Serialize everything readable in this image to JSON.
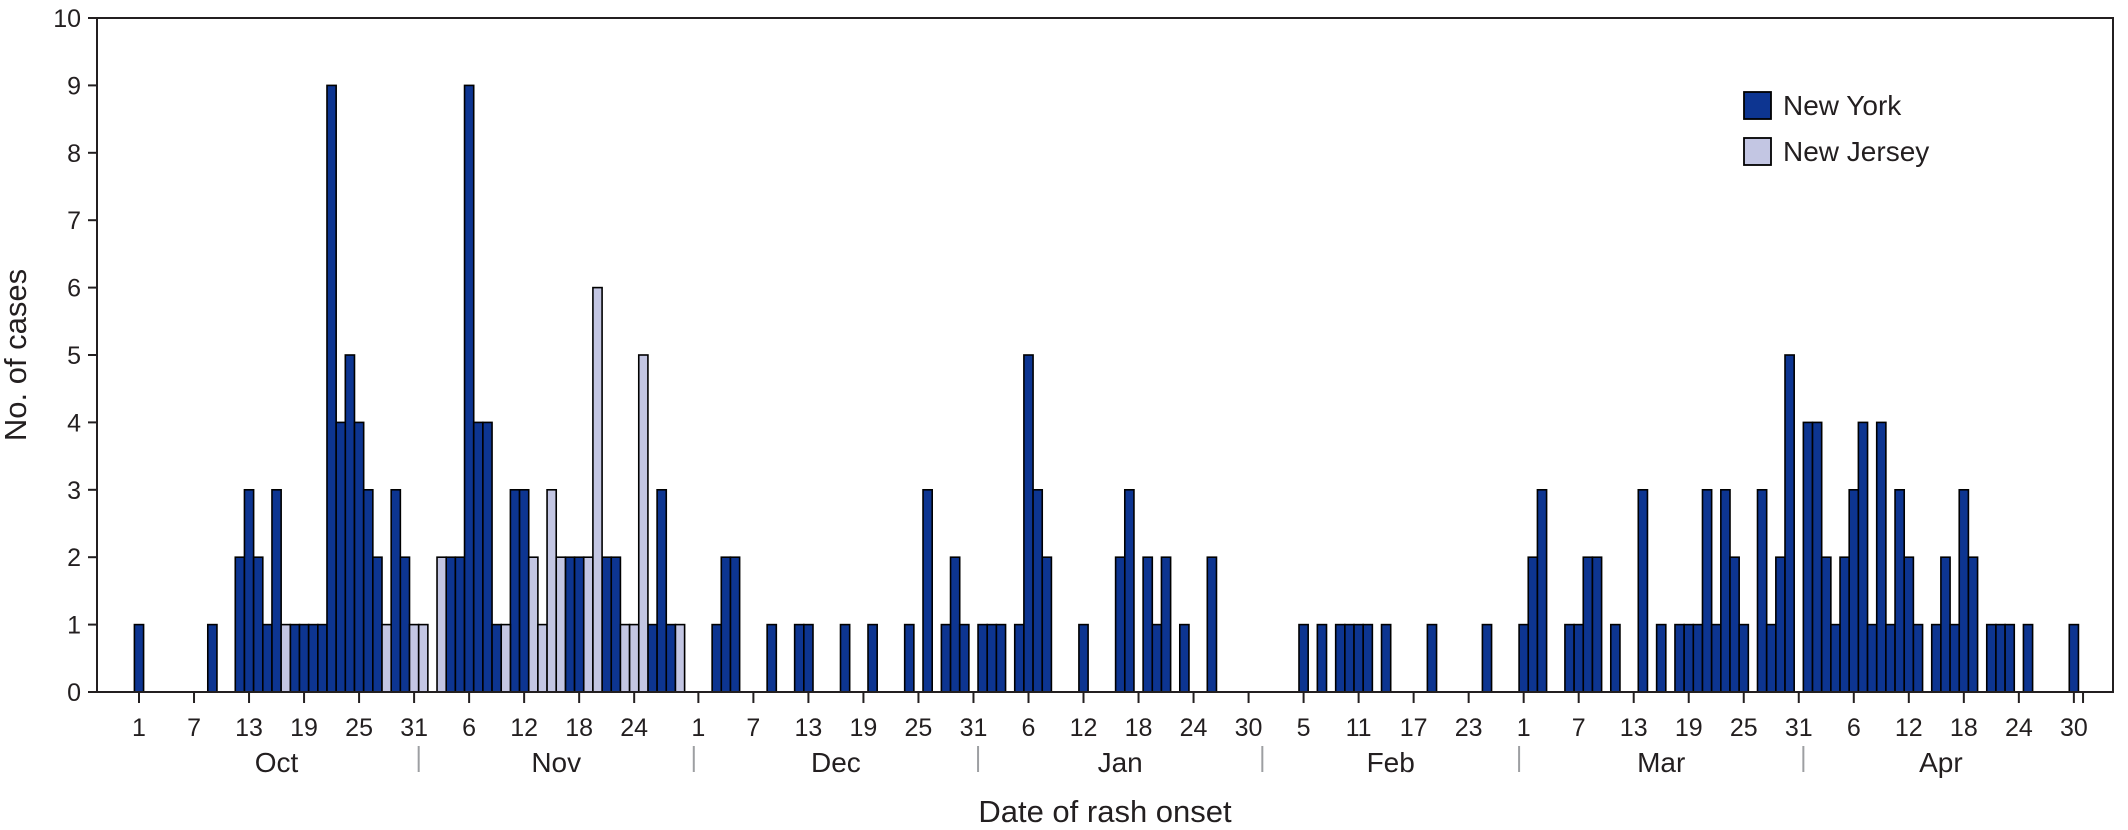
{
  "chart_data": {
    "type": "bar",
    "title": "",
    "xlabel": "Date of rash onset",
    "ylabel": "No. of cases",
    "ylim": [
      0,
      10
    ],
    "yticks": [
      0,
      1,
      2,
      3,
      4,
      5,
      6,
      7,
      8,
      9,
      10
    ],
    "grid": false,
    "legend_position": "top-right",
    "x_range": [
      "Oct 1",
      "Apr 30"
    ],
    "months": [
      "Oct",
      "Nov",
      "Dec",
      "Jan",
      "Feb",
      "Mar",
      "Apr"
    ],
    "x_tick_labels": [
      {
        "date": "Oct 1",
        "label": "1"
      },
      {
        "date": "Oct 7",
        "label": "7"
      },
      {
        "date": "Oct 13",
        "label": "13"
      },
      {
        "date": "Oct 19",
        "label": "19"
      },
      {
        "date": "Oct 25",
        "label": "25"
      },
      {
        "date": "Oct 31",
        "label": "31"
      },
      {
        "date": "Nov 6",
        "label": "6"
      },
      {
        "date": "Nov 12",
        "label": "12"
      },
      {
        "date": "Nov 18",
        "label": "18"
      },
      {
        "date": "Nov 24",
        "label": "24"
      },
      {
        "date": "Dec 1",
        "label": "1"
      },
      {
        "date": "Dec 7",
        "label": "7"
      },
      {
        "date": "Dec 13",
        "label": "13"
      },
      {
        "date": "Dec 19",
        "label": "19"
      },
      {
        "date": "Dec 25",
        "label": "25"
      },
      {
        "date": "Dec 31",
        "label": "31"
      },
      {
        "date": "Jan 6",
        "label": "6"
      },
      {
        "date": "Jan 12",
        "label": "12"
      },
      {
        "date": "Jan 18",
        "label": "18"
      },
      {
        "date": "Jan 24",
        "label": "24"
      },
      {
        "date": "Jan 30",
        "label": "30"
      },
      {
        "date": "Feb 5",
        "label": "5"
      },
      {
        "date": "Feb 11",
        "label": "11"
      },
      {
        "date": "Feb 17",
        "label": "17"
      },
      {
        "date": "Feb 23",
        "label": "23"
      },
      {
        "date": "Mar 1",
        "label": "1"
      },
      {
        "date": "Mar 7",
        "label": "7"
      },
      {
        "date": "Mar 13",
        "label": "13"
      },
      {
        "date": "Mar 19",
        "label": "19"
      },
      {
        "date": "Mar 25",
        "label": "25"
      },
      {
        "date": "Mar 31",
        "label": "31"
      },
      {
        "date": "Apr 6",
        "label": "6"
      },
      {
        "date": "Apr 12",
        "label": "12"
      },
      {
        "date": "Apr 18",
        "label": "18"
      },
      {
        "date": "Apr 24",
        "label": "24"
      },
      {
        "date": "Apr 30",
        "label": "30"
      }
    ],
    "series": [
      {
        "name": "New York",
        "color": "#0d3591",
        "points": [
          {
            "date": "Oct 1",
            "value": 1
          },
          {
            "date": "Oct 9",
            "value": 1
          },
          {
            "date": "Oct 12",
            "value": 2
          },
          {
            "date": "Oct 13",
            "value": 3
          },
          {
            "date": "Oct 14",
            "value": 2
          },
          {
            "date": "Oct 15",
            "value": 1
          },
          {
            "date": "Oct 16",
            "value": 3
          },
          {
            "date": "Oct 18",
            "value": 1
          },
          {
            "date": "Oct 19",
            "value": 1
          },
          {
            "date": "Oct 20",
            "value": 1
          },
          {
            "date": "Oct 21",
            "value": 1
          },
          {
            "date": "Oct 22",
            "value": 9
          },
          {
            "date": "Oct 23",
            "value": 4
          },
          {
            "date": "Oct 24",
            "value": 5
          },
          {
            "date": "Oct 25",
            "value": 4
          },
          {
            "date": "Oct 26",
            "value": 3
          },
          {
            "date": "Oct 27",
            "value": 2
          },
          {
            "date": "Oct 29",
            "value": 3
          },
          {
            "date": "Oct 30",
            "value": 2
          },
          {
            "date": "Nov 4",
            "value": 2
          },
          {
            "date": "Nov 5",
            "value": 2
          },
          {
            "date": "Nov 6",
            "value": 9
          },
          {
            "date": "Nov 7",
            "value": 4
          },
          {
            "date": "Nov 8",
            "value": 4
          },
          {
            "date": "Nov 9",
            "value": 1
          },
          {
            "date": "Nov 11",
            "value": 3
          },
          {
            "date": "Nov 12",
            "value": 3
          },
          {
            "date": "Nov 17",
            "value": 2
          },
          {
            "date": "Nov 18",
            "value": 2
          },
          {
            "date": "Nov 21",
            "value": 2
          },
          {
            "date": "Nov 22",
            "value": 2
          },
          {
            "date": "Nov 26",
            "value": 1
          },
          {
            "date": "Nov 27",
            "value": 3
          },
          {
            "date": "Nov 28",
            "value": 1
          },
          {
            "date": "Dec 3",
            "value": 1
          },
          {
            "date": "Dec 4",
            "value": 2
          },
          {
            "date": "Dec 5",
            "value": 2
          },
          {
            "date": "Dec 9",
            "value": 1
          },
          {
            "date": "Dec 12",
            "value": 1
          },
          {
            "date": "Dec 13",
            "value": 1
          },
          {
            "date": "Dec 17",
            "value": 1
          },
          {
            "date": "Dec 20",
            "value": 1
          },
          {
            "date": "Dec 24",
            "value": 1
          },
          {
            "date": "Dec 26",
            "value": 3
          },
          {
            "date": "Dec 28",
            "value": 1
          },
          {
            "date": "Dec 29",
            "value": 2
          },
          {
            "date": "Dec 30",
            "value": 1
          },
          {
            "date": "Jan 1",
            "value": 1
          },
          {
            "date": "Jan 2",
            "value": 1
          },
          {
            "date": "Jan 3",
            "value": 1
          },
          {
            "date": "Jan 5",
            "value": 1
          },
          {
            "date": "Jan 6",
            "value": 5
          },
          {
            "date": "Jan 7",
            "value": 3
          },
          {
            "date": "Jan 8",
            "value": 2
          },
          {
            "date": "Jan 12",
            "value": 1
          },
          {
            "date": "Jan 16",
            "value": 2
          },
          {
            "date": "Jan 17",
            "value": 3
          },
          {
            "date": "Jan 19",
            "value": 2
          },
          {
            "date": "Jan 20",
            "value": 1
          },
          {
            "date": "Jan 21",
            "value": 2
          },
          {
            "date": "Jan 23",
            "value": 1
          },
          {
            "date": "Jan 26",
            "value": 2
          },
          {
            "date": "Feb 5",
            "value": 1
          },
          {
            "date": "Feb 7",
            "value": 1
          },
          {
            "date": "Feb 9",
            "value": 1
          },
          {
            "date": "Feb 10",
            "value": 1
          },
          {
            "date": "Feb 11",
            "value": 1
          },
          {
            "date": "Feb 12",
            "value": 1
          },
          {
            "date": "Feb 14",
            "value": 1
          },
          {
            "date": "Feb 19",
            "value": 1
          },
          {
            "date": "Feb 25",
            "value": 1
          },
          {
            "date": "Mar 1",
            "value": 1
          },
          {
            "date": "Mar 2",
            "value": 2
          },
          {
            "date": "Mar 3",
            "value": 3
          },
          {
            "date": "Mar 6",
            "value": 1
          },
          {
            "date": "Mar 7",
            "value": 1
          },
          {
            "date": "Mar 8",
            "value": 2
          },
          {
            "date": "Mar 9",
            "value": 2
          },
          {
            "date": "Mar 11",
            "value": 1
          },
          {
            "date": "Mar 14",
            "value": 3
          },
          {
            "date": "Mar 16",
            "value": 1
          },
          {
            "date": "Mar 18",
            "value": 1
          },
          {
            "date": "Mar 19",
            "value": 1
          },
          {
            "date": "Mar 20",
            "value": 1
          },
          {
            "date": "Mar 21",
            "value": 3
          },
          {
            "date": "Mar 22",
            "value": 1
          },
          {
            "date": "Mar 23",
            "value": 3
          },
          {
            "date": "Mar 24",
            "value": 2
          },
          {
            "date": "Mar 25",
            "value": 1
          },
          {
            "date": "Mar 27",
            "value": 3
          },
          {
            "date": "Mar 28",
            "value": 1
          },
          {
            "date": "Mar 29",
            "value": 2
          },
          {
            "date": "Mar 30",
            "value": 5
          },
          {
            "date": "Apr 1",
            "value": 4
          },
          {
            "date": "Apr 2",
            "value": 4
          },
          {
            "date": "Apr 3",
            "value": 2
          },
          {
            "date": "Apr 4",
            "value": 1
          },
          {
            "date": "Apr 5",
            "value": 2
          },
          {
            "date": "Apr 6",
            "value": 3
          },
          {
            "date": "Apr 7",
            "value": 4
          },
          {
            "date": "Apr 8",
            "value": 1
          },
          {
            "date": "Apr 9",
            "value": 4
          },
          {
            "date": "Apr 10",
            "value": 1
          },
          {
            "date": "Apr 11",
            "value": 3
          },
          {
            "date": "Apr 12",
            "value": 2
          },
          {
            "date": "Apr 13",
            "value": 1
          },
          {
            "date": "Apr 15",
            "value": 1
          },
          {
            "date": "Apr 16",
            "value": 2
          },
          {
            "date": "Apr 17",
            "value": 1
          },
          {
            "date": "Apr 18",
            "value": 3
          },
          {
            "date": "Apr 19",
            "value": 2
          },
          {
            "date": "Apr 21",
            "value": 1
          },
          {
            "date": "Apr 22",
            "value": 1
          },
          {
            "date": "Apr 23",
            "value": 1
          },
          {
            "date": "Apr 25",
            "value": 1
          },
          {
            "date": "Apr 30",
            "value": 1
          }
        ]
      },
      {
        "name": "New Jersey",
        "color": "#c3c6e3",
        "points": [
          {
            "date": "Oct 17",
            "value": 1
          },
          {
            "date": "Oct 28",
            "value": 1
          },
          {
            "date": "Oct 31",
            "value": 1
          },
          {
            "date": "Nov 1",
            "value": 1
          },
          {
            "date": "Nov 3",
            "value": 2
          },
          {
            "date": "Nov 10",
            "value": 1
          },
          {
            "date": "Nov 13",
            "value": 2
          },
          {
            "date": "Nov 14",
            "value": 1
          },
          {
            "date": "Nov 15",
            "value": 3
          },
          {
            "date": "Nov 16",
            "value": 2
          },
          {
            "date": "Nov 19",
            "value": 2
          },
          {
            "date": "Nov 20",
            "value": 6
          },
          {
            "date": "Nov 23",
            "value": 1
          },
          {
            "date": "Nov 24",
            "value": 1
          },
          {
            "date": "Nov 25",
            "value": 5
          },
          {
            "date": "Nov 29",
            "value": 1
          }
        ]
      }
    ]
  }
}
